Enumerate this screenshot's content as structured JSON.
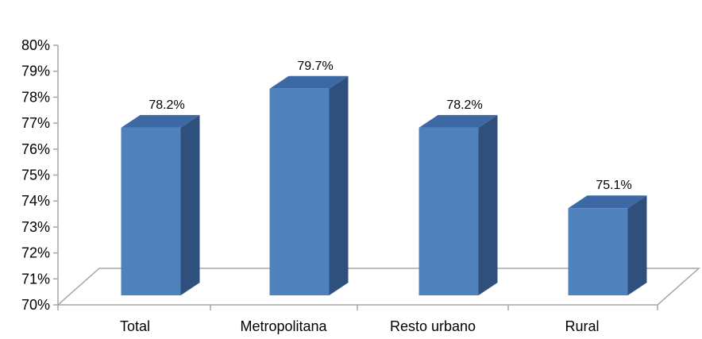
{
  "chart_data": {
    "type": "bar",
    "categories": [
      "Total",
      "Metropolitana",
      "Resto urbano",
      "Rural"
    ],
    "values": [
      78.2,
      79.7,
      78.2,
      75.1
    ],
    "data_labels": [
      "78.2%",
      "79.7%",
      "78.2%",
      "75.1%"
    ],
    "title": "",
    "xlabel": "",
    "ylabel": "",
    "ylim": [
      70,
      80
    ],
    "yticks": [
      "70%",
      "71%",
      "72%",
      "73%",
      "74%",
      "75%",
      "76%",
      "77%",
      "78%",
      "79%",
      "80%"
    ],
    "style": "3d-column",
    "grid": false,
    "legend": "none",
    "colors": {
      "bar_front": "#4f81bd",
      "bar_side": "#2f4f7c",
      "bar_top": "#3c68a3",
      "floor_line": "#a6a6a6"
    }
  }
}
